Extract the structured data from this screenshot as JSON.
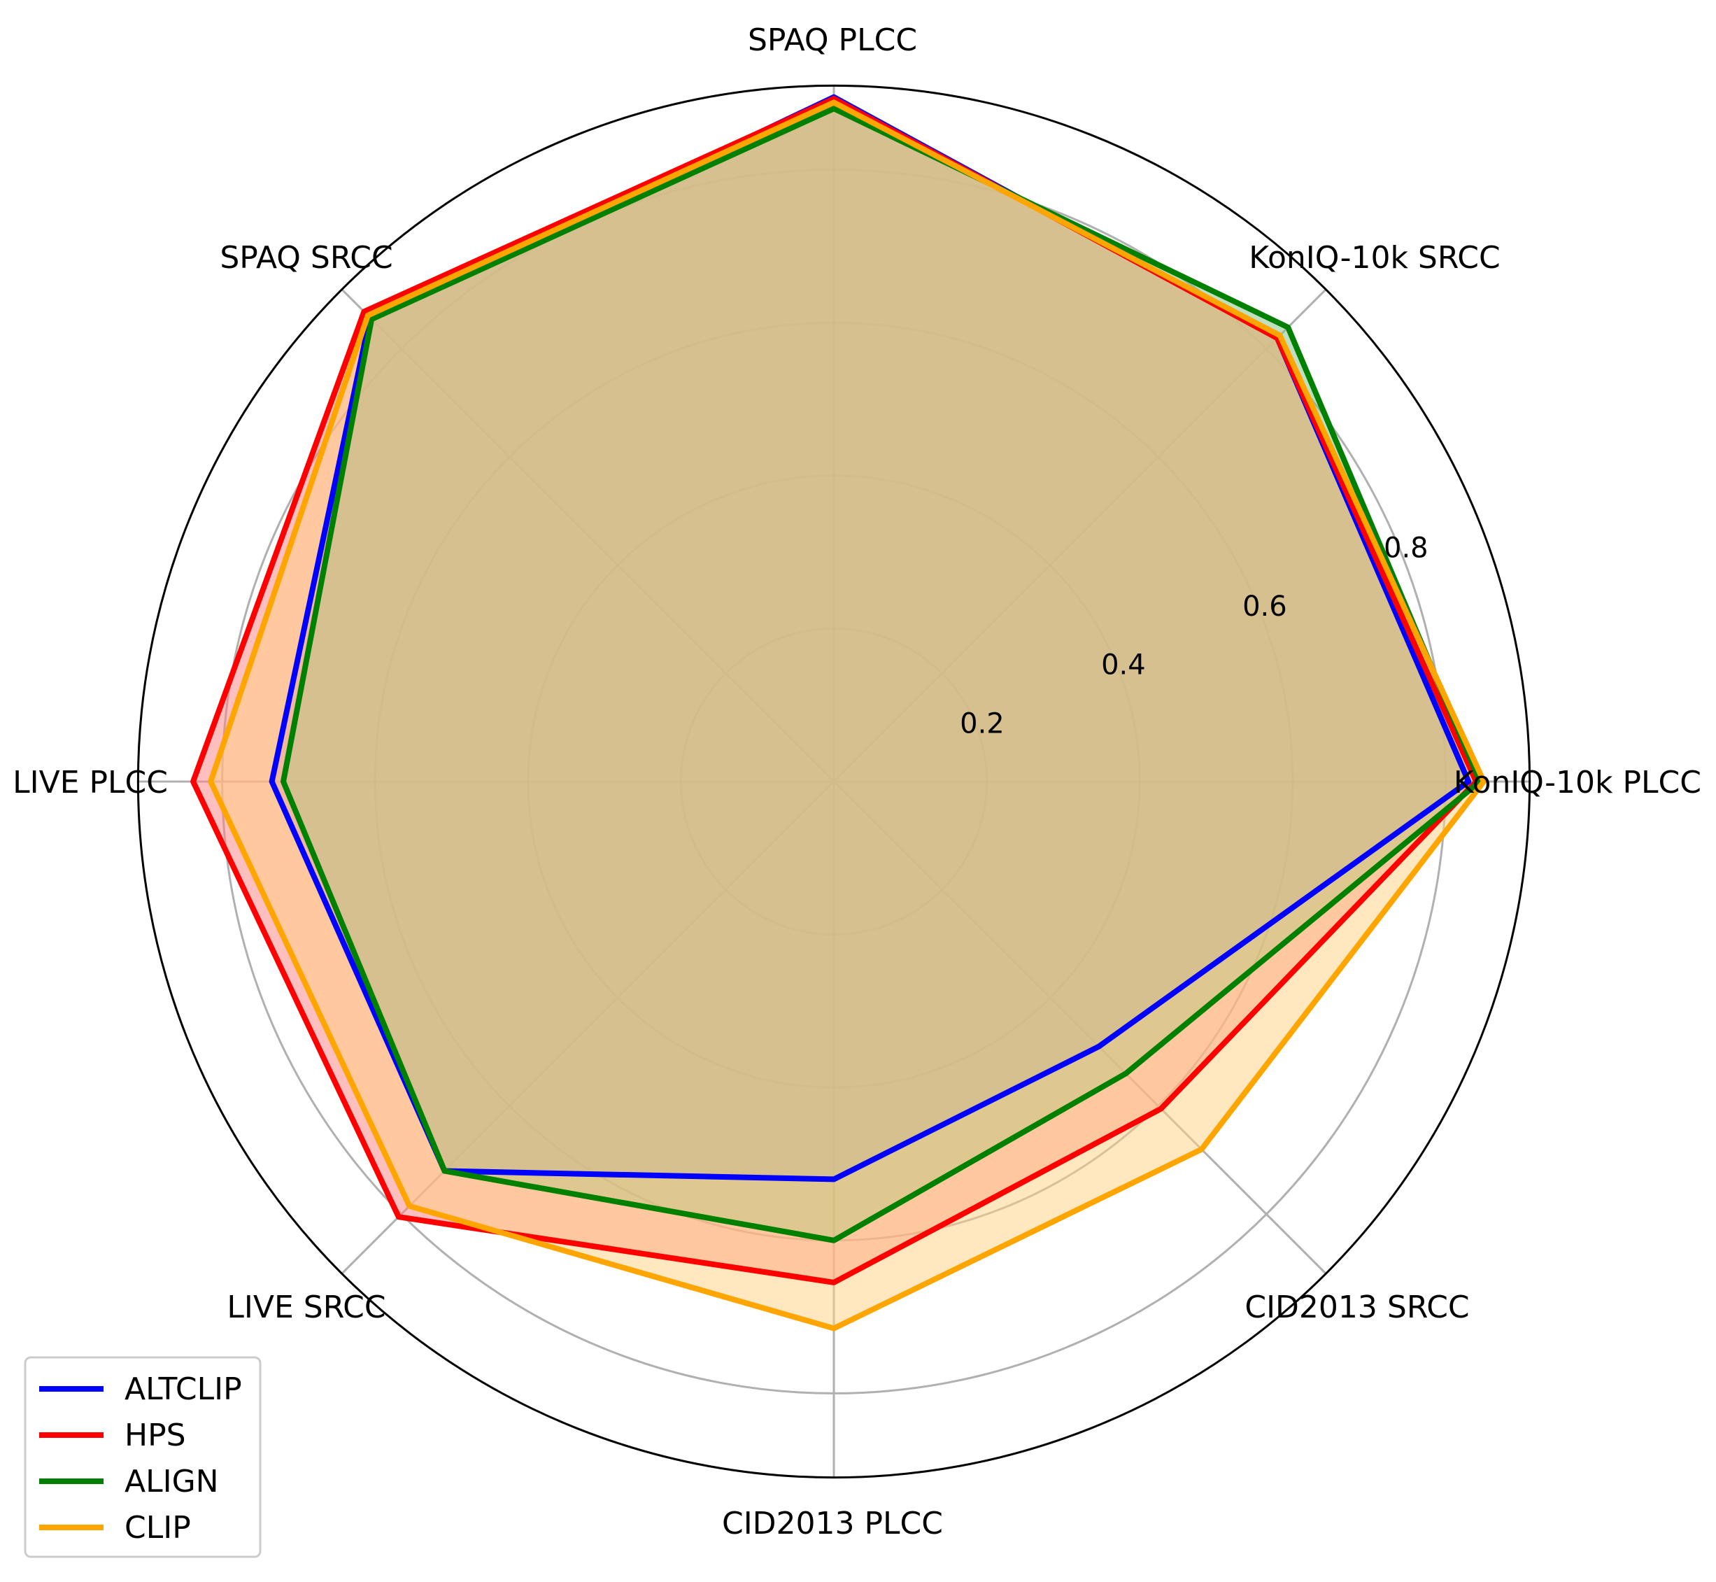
{
  "chart_data": {
    "type": "radar",
    "axes": [
      "KonIQ-10k PLCC",
      "KonIQ-10k SRCC",
      "SPAQ PLCC",
      "SPAQ SRCC",
      "LIVE PLCC",
      "LIVE SRCC",
      "CID2013 PLCC",
      "CID2013 SRCC"
    ],
    "r_ticks": [
      "0.2",
      "0.4",
      "0.6",
      "0.8"
    ],
    "r_range": [
      0,
      0.91
    ],
    "grid": true,
    "legend_position": "lower-left",
    "series": [
      {
        "name": "ALTCLIP",
        "color": "#0000ff",
        "fill": "#8080ff",
        "values": [
          0.83,
          0.82,
          0.895,
          0.858,
          0.735,
          0.72,
          0.52,
          0.49
        ]
      },
      {
        "name": "HPS",
        "color": "#ff0000",
        "fill": "#ff8080",
        "values": [
          0.84,
          0.82,
          0.893,
          0.869,
          0.838,
          0.805,
          0.655,
          0.605
        ]
      },
      {
        "name": "ALIGN",
        "color": "#008000",
        "fill": "#80c080",
        "values": [
          0.845,
          0.84,
          0.88,
          0.855,
          0.72,
          0.72,
          0.6,
          0.54
        ]
      },
      {
        "name": "CLIP",
        "color": "#ffa500",
        "fill": "#ffd280",
        "values": [
          0.85,
          0.825,
          0.888,
          0.862,
          0.815,
          0.785,
          0.715,
          0.68
        ]
      }
    ]
  }
}
